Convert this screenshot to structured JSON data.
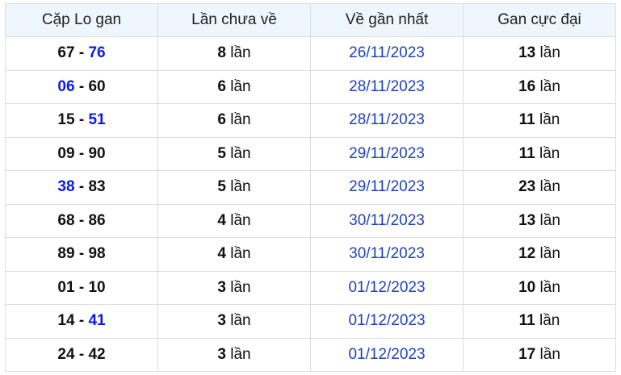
{
  "headers": [
    "Cặp Lo gan",
    "Lần chưa về",
    "Về gần nhất",
    "Gan cực đại"
  ],
  "unit": "lần",
  "colors": {
    "highlight": "#0b1af0",
    "date": "#1d41b8",
    "header_bg": "#eef6fe"
  },
  "rows": [
    {
      "a": "67",
      "b": "76",
      "hl": "b",
      "count": "8",
      "date": "26/11/2023",
      "max": "13"
    },
    {
      "a": "06",
      "b": "60",
      "hl": "a",
      "count": "6",
      "date": "28/11/2023",
      "max": "16"
    },
    {
      "a": "15",
      "b": "51",
      "hl": "b",
      "count": "6",
      "date": "28/11/2023",
      "max": "11"
    },
    {
      "a": "09",
      "b": "90",
      "hl": "",
      "count": "5",
      "date": "29/11/2023",
      "max": "11"
    },
    {
      "a": "38",
      "b": "83",
      "hl": "a",
      "count": "5",
      "date": "29/11/2023",
      "max": "23"
    },
    {
      "a": "68",
      "b": "86",
      "hl": "",
      "count": "4",
      "date": "30/11/2023",
      "max": "13"
    },
    {
      "a": "89",
      "b": "98",
      "hl": "",
      "count": "4",
      "date": "30/11/2023",
      "max": "12"
    },
    {
      "a": "01",
      "b": "10",
      "hl": "",
      "count": "3",
      "date": "01/12/2023",
      "max": "10"
    },
    {
      "a": "14",
      "b": "41",
      "hl": "b",
      "count": "3",
      "date": "01/12/2023",
      "max": "11"
    },
    {
      "a": "24",
      "b": "42",
      "hl": "",
      "count": "3",
      "date": "01/12/2023",
      "max": "17"
    }
  ]
}
